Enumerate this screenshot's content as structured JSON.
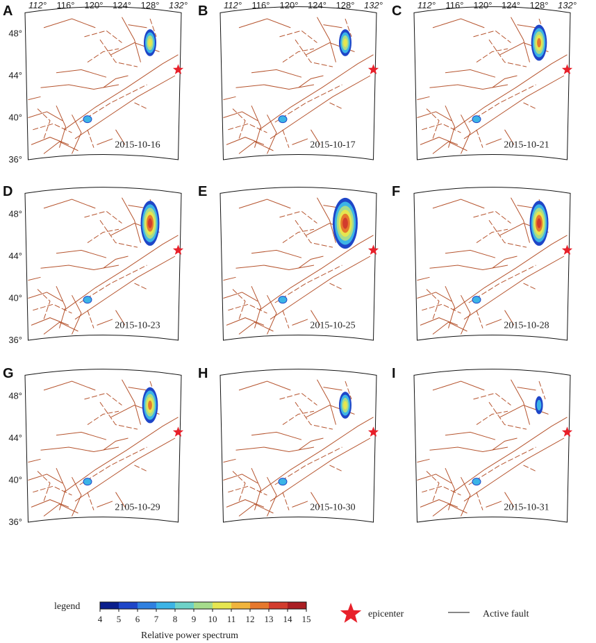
{
  "lon_labels": [
    "112°",
    "116°",
    "120°",
    "124°",
    "128°",
    "132°"
  ],
  "lat_labels": [
    "48°",
    "44°",
    "40°",
    "36°"
  ],
  "panels": [
    {
      "letter": "A",
      "date": "2015-10-16",
      "anomaly": "small"
    },
    {
      "letter": "B",
      "date": "2015-10-17",
      "anomaly": "small"
    },
    {
      "letter": "C",
      "date": "2015-10-21",
      "anomaly": "medium"
    },
    {
      "letter": "D",
      "date": "2015-10-23",
      "anomaly": "large"
    },
    {
      "letter": "E",
      "date": "2015-10-25",
      "anomaly": "xlarge"
    },
    {
      "letter": "F",
      "date": "2015-10-28",
      "anomaly": "large"
    },
    {
      "letter": "G",
      "date": "2105-10-29",
      "anomaly": "medium"
    },
    {
      "letter": "H",
      "date": "2015-10-30",
      "anomaly": "small"
    },
    {
      "letter": "I",
      "date": "2015-10-31",
      "anomaly": "tiny"
    }
  ],
  "legend": {
    "title": "legend",
    "ticks": [
      "4",
      "5",
      "6",
      "7",
      "8",
      "9",
      "10",
      "11",
      "12",
      "13",
      "14",
      "15"
    ],
    "colors": [
      "#0a1e8c",
      "#1e46c8",
      "#2f80e0",
      "#3cb4e6",
      "#6ed2c8",
      "#a6dc8c",
      "#e6e650",
      "#f0b43c",
      "#e6782d",
      "#d23c2d",
      "#aa1e23"
    ],
    "caption": "Relative power spectrum",
    "epicenter_label": "epicenter",
    "fault_label": "Active fault"
  },
  "colors": {
    "fault": "#b5532d",
    "epicenter": "#e8202a",
    "frame": "#111111"
  }
}
